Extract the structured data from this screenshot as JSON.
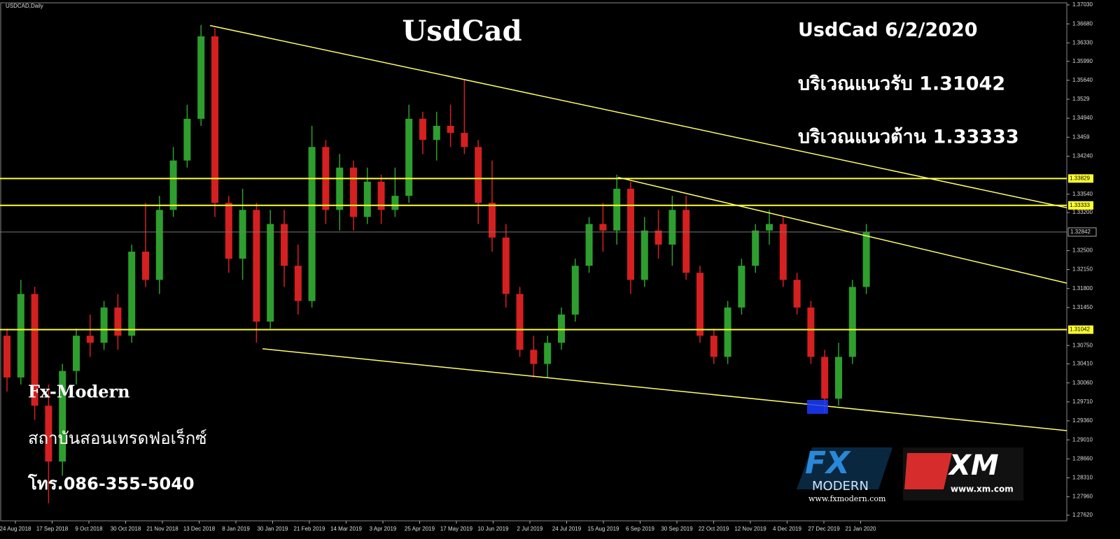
{
  "chart_data": {
    "type": "candlestick",
    "symbol": "USDCAD,Daily",
    "title": "UsdCad",
    "annotations": [
      "UsdCad 6/2/2020",
      "บริเวณแนวรับ 1.31042",
      "บริเวณแนวต้าน 1.33333"
    ],
    "footer": [
      "Fx-Modern",
      "สถาบันสอนเทรดฟอเร็กซ์",
      "โทร.086-355-5040"
    ],
    "logos": {
      "fx": "FX",
      "fx_sub": "MODERN",
      "fx_url": "www.fxmodern.com",
      "xm": "XM",
      "xm_url": "www.xm.com"
    },
    "dates": [
      "24 Aug 2018",
      "17 Sep 2018",
      "9 Oct 2018",
      "30 Oct 2018",
      "21 Nov 2018",
      "13 Dec 2018",
      "8 Jan 2019",
      "30 Jan 2019",
      "21 Feb 2019",
      "14 Mar 2019",
      "3 Apr 2019",
      "25 Apr 2019",
      "17 May 2019",
      "10 Jun 2019",
      "2 Jul 2019",
      "24 Jul 2019",
      "15 Aug 2019",
      "6 Sep 2019",
      "30 Sep 2019",
      "22 Oct 2019",
      "12 Nov 2019",
      "4 Dec 2019",
      "27 Dec 2019",
      "21 Jan 2020"
    ],
    "open": [
      1.3093,
      1.3016,
      1.317,
      1.2964,
      1.2861,
      1.3028,
      1.3093,
      1.308,
      1.3145,
      1.3093,
      1.3248,
      1.3196,
      1.3325,
      1.3416,
      1.3493,
      1.3645,
      1.3338,
      1.3235,
      1.3325,
      1.3119,
      1.3299,
      1.3222,
      1.3157,
      1.3441,
      1.3325,
      1.3403,
      1.3312,
      1.3377,
      1.3325,
      1.3351,
      1.3493,
      1.3454,
      1.348,
      1.3467,
      1.3441,
      1.3338,
      1.3274,
      1.317,
      1.3067,
      1.3041,
      1.308,
      1.3132,
      1.3222,
      1.3299,
      1.3287,
      1.3364,
      1.3196,
      1.3287,
      1.3261,
      1.3325,
      1.3209,
      1.3093,
      1.3054,
      1.3145,
      1.3222,
      1.3287,
      1.3299,
      1.3196,
      1.3145,
      1.3054,
      1.2977,
      1.3054,
      1.3183
    ],
    "high": [
      1.3106,
      1.3196,
      1.3183,
      1.3003,
      1.3041,
      1.3106,
      1.3132,
      1.3157,
      1.317,
      1.3261,
      1.3338,
      1.3351,
      1.3441,
      1.3519,
      1.3666,
      1.366,
      1.3351,
      1.3364,
      1.3338,
      1.3325,
      1.3325,
      1.3261,
      1.348,
      1.3454,
      1.3428,
      1.3416,
      1.3403,
      1.339,
      1.3403,
      1.3519,
      1.3506,
      1.3506,
      1.3519,
      1.3565,
      1.3454,
      1.3416,
      1.3299,
      1.3183,
      1.3093,
      1.3093,
      1.3145,
      1.3235,
      1.3312,
      1.3338,
      1.339,
      1.3377,
      1.3312,
      1.3325,
      1.3351,
      1.3351,
      1.3222,
      1.3106,
      1.3157,
      1.3235,
      1.3299,
      1.3325,
      1.3312,
      1.3209,
      1.3157,
      1.3067,
      1.308,
      1.3196,
      1.3299
    ],
    "low": [
      1.299,
      1.3003,
      1.2938,
      1.2784,
      1.2835,
      1.3003,
      1.3054,
      1.3067,
      1.3067,
      1.308,
      1.3183,
      1.317,
      1.3312,
      1.3403,
      1.348,
      1.3312,
      1.3209,
      1.3196,
      1.308,
      1.3106,
      1.3183,
      1.3132,
      1.3145,
      1.3299,
      1.3287,
      1.3287,
      1.3299,
      1.3299,
      1.3312,
      1.3338,
      1.3428,
      1.3416,
      1.3441,
      1.3428,
      1.3299,
      1.3248,
      1.3145,
      1.3054,
      1.3016,
      1.3016,
      1.3067,
      1.3119,
      1.3209,
      1.3248,
      1.3261,
      1.317,
      1.3183,
      1.3235,
      1.3222,
      1.3196,
      1.308,
      1.3041,
      1.3041,
      1.3132,
      1.3209,
      1.3261,
      1.3183,
      1.3132,
      1.3041,
      1.2951,
      1.2964,
      1.3041,
      1.317
    ],
    "close": [
      1.3016,
      1.317,
      1.2964,
      1.2861,
      1.3028,
      1.3093,
      1.308,
      1.3145,
      1.3093,
      1.3248,
      1.3196,
      1.3325,
      1.3416,
      1.3493,
      1.3645,
      1.3338,
      1.3235,
      1.3325,
      1.3119,
      1.3299,
      1.3222,
      1.3157,
      1.3441,
      1.3325,
      1.3403,
      1.3312,
      1.3377,
      1.3325,
      1.3351,
      1.3493,
      1.3454,
      1.348,
      1.3467,
      1.3441,
      1.3338,
      1.3274,
      1.317,
      1.3067,
      1.3041,
      1.308,
      1.3132,
      1.3222,
      1.3299,
      1.3287,
      1.3364,
      1.3196,
      1.3287,
      1.3261,
      1.3325,
      1.3209,
      1.3093,
      1.3054,
      1.3145,
      1.3222,
      1.3287,
      1.3299,
      1.3196,
      1.3145,
      1.3054,
      1.2977,
      1.3054,
      1.3183,
      1.3284
    ],
    "up_color": "#2e9e2e",
    "down_color": "#d42020",
    "levels": [
      1.33829,
      1.33333,
      1.31042
    ],
    "level_color": "#ffff33",
    "current_price": 1.32842,
    "trendlines": [
      {
        "start": 1.3665,
        "end": 1.3329
      },
      {
        "start": 1.3385,
        "end": 1.319
      },
      {
        "start": 1.3069,
        "end": 1.2918
      }
    ],
    "trend_color": "#ffff66",
    "ylim": [
      1.2762,
      1.3703
    ],
    "yticks": [
      {
        "value": 1.3703,
        "label": "1.37030"
      },
      {
        "value": 1.3668,
        "label": "1.36680"
      },
      {
        "value": 1.3633,
        "label": "1.36330"
      },
      {
        "value": 1.3599,
        "label": "1.35990"
      },
      {
        "value": 1.3564,
        "label": "1.35640"
      },
      1.3529,
      {
        "value": 1.3494,
        "label": "1.34940"
      },
      1.3459,
      {
        "value": 1.3424,
        "label": "1.34240"
      },
      {
        "value": 1.3354,
        "label": "1.33540"
      },
      {
        "value": 1.332,
        "label": "1.33200"
      },
      {
        "value": 1.325,
        "label": "1.32500"
      },
      {
        "value": 1.3215,
        "label": "1.32150"
      },
      {
        "value": 1.318,
        "label": "1.31800"
      },
      {
        "value": 1.3145,
        "label": "1.31450"
      },
      {
        "value": 1.3075,
        "label": "1.30750"
      },
      {
        "value": 1.3041,
        "label": "1.30410"
      },
      {
        "value": 1.3006,
        "label": "1.30060"
      },
      {
        "value": 1.2971,
        "label": "1.29710"
      },
      {
        "value": 1.2936,
        "label": "1.29360"
      },
      {
        "value": 1.2901,
        "label": "1.29010"
      },
      {
        "value": 1.2866,
        "label": "1.28660"
      },
      {
        "value": 1.2831,
        "label": "1.28310"
      },
      {
        "value": 1.2796,
        "label": "1.27960"
      },
      {
        "value": 1.2762,
        "label": "1.27620"
      }
    ]
  }
}
